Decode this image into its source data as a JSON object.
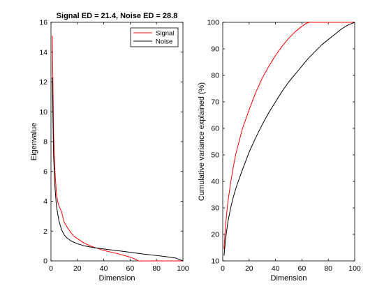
{
  "chart_data": [
    {
      "type": "line",
      "title": "Signal ED = 21.4, Noise ED = 28.8",
      "xlabel": "Dimension",
      "ylabel": "Eigenvalue",
      "xlim": [
        0,
        100
      ],
      "ylim": [
        0,
        16
      ],
      "xticks": [
        0,
        20,
        40,
        60,
        80,
        100
      ],
      "yticks": [
        0,
        2,
        4,
        6,
        8,
        10,
        12,
        14,
        16
      ],
      "legend": "top-right",
      "series": [
        {
          "name": "Signal",
          "color": "#ff0000",
          "x": [
            1,
            2,
            3,
            4,
            5,
            6,
            8,
            10,
            12,
            15,
            18,
            20,
            25,
            30,
            35,
            40,
            45,
            50,
            55,
            60,
            63,
            65,
            66,
            70,
            80,
            90,
            100
          ],
          "y": [
            15.1,
            8.5,
            6.0,
            4.7,
            4.0,
            3.7,
            3.3,
            2.6,
            2.3,
            1.9,
            1.6,
            1.5,
            1.2,
            1.0,
            0.85,
            0.7,
            0.6,
            0.5,
            0.38,
            0.25,
            0.15,
            0.07,
            0.0,
            0.0,
            0.0,
            0.0,
            0.0
          ]
        },
        {
          "name": "Noise",
          "color": "#000000",
          "x": [
            1,
            2,
            3,
            4,
            5,
            6,
            8,
            10,
            12,
            15,
            20,
            25,
            30,
            35,
            40,
            45,
            50,
            55,
            60,
            65,
            70,
            75,
            80,
            85,
            90,
            95,
            98,
            100
          ],
          "y": [
            12.3,
            7.0,
            5.0,
            3.8,
            3.2,
            2.7,
            2.1,
            1.75,
            1.55,
            1.35,
            1.15,
            1.02,
            0.93,
            0.86,
            0.8,
            0.74,
            0.69,
            0.64,
            0.58,
            0.52,
            0.46,
            0.41,
            0.36,
            0.31,
            0.25,
            0.18,
            0.07,
            0.0
          ]
        }
      ]
    },
    {
      "type": "line",
      "title": "",
      "xlabel": "Dimension",
      "ylabel": "Cumulative variance explained (%)",
      "xlim": [
        0,
        100
      ],
      "ylim": [
        10,
        100
      ],
      "xticks": [
        0,
        20,
        40,
        60,
        80,
        100
      ],
      "yticks": [
        10,
        20,
        30,
        40,
        50,
        60,
        70,
        80,
        90,
        100
      ],
      "series": [
        {
          "color": "#ff0000",
          "x": [
            1,
            2,
            3,
            4,
            6,
            8,
            10,
            15,
            20,
            25,
            30,
            35,
            40,
            45,
            50,
            55,
            60,
            63,
            65,
            66,
            70,
            80,
            90,
            100
          ],
          "y": [
            14.5,
            22.5,
            28.0,
            32.5,
            39.5,
            45.5,
            50.5,
            60.0,
            67.0,
            73.5,
            79.0,
            83.5,
            87.5,
            91.0,
            94.0,
            96.5,
            98.5,
            99.5,
            99.9,
            100.0,
            100.0,
            100.0,
            100.0,
            100.0
          ]
        },
        {
          "color": "#000000",
          "x": [
            1,
            2,
            3,
            4,
            6,
            8,
            10,
            15,
            20,
            25,
            30,
            35,
            40,
            45,
            50,
            55,
            60,
            65,
            70,
            75,
            80,
            85,
            90,
            95,
            100
          ],
          "y": [
            12.0,
            17.5,
            21.5,
            25.0,
            30.0,
            34.0,
            37.5,
            44.5,
            51.0,
            56.5,
            61.5,
            66.0,
            70.0,
            74.0,
            77.5,
            80.5,
            83.5,
            86.5,
            89.0,
            91.5,
            93.5,
            95.5,
            97.5,
            99.0,
            100.0
          ]
        }
      ]
    }
  ]
}
